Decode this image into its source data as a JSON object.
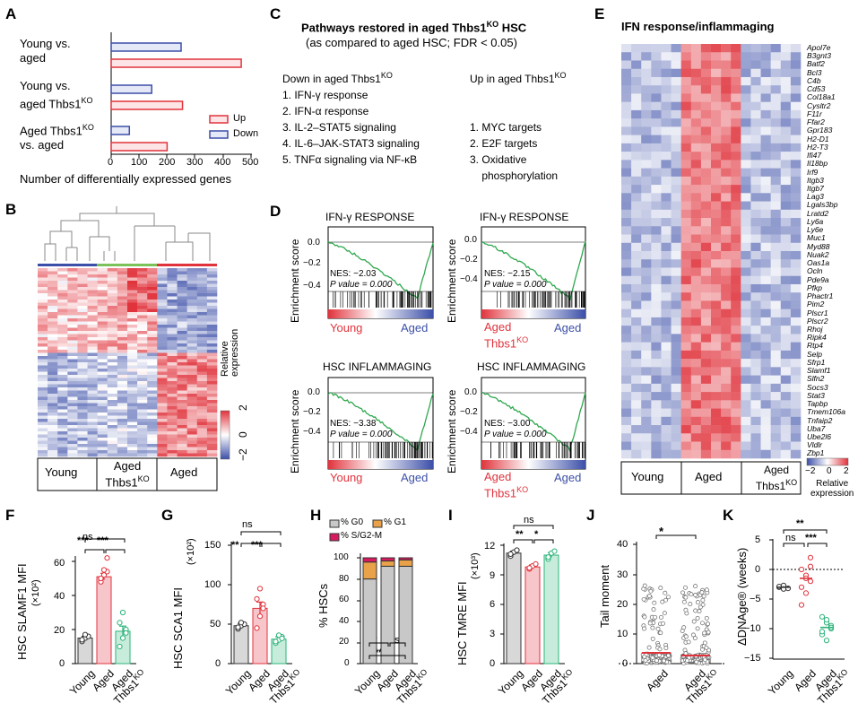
{
  "panel_labels": [
    "A",
    "B",
    "C",
    "D",
    "E",
    "F",
    "G",
    "H",
    "I",
    "J",
    "K"
  ],
  "colors": {
    "red": "#e0333c",
    "blue": "#3c4fa8",
    "green": "#2bb37a",
    "pink": "#f0a0a8",
    "gray": "#bdbdbd",
    "orange": "#e9a24a",
    "magenta": "#d81b60"
  },
  "panelA": {
    "categories": [
      "Young vs. aged",
      "Young vs. aged Thbs1KO",
      "Aged Thbs1KO vs. aged"
    ],
    "cat_lines": [
      [
        "Young vs.",
        "aged"
      ],
      [
        "Young vs.",
        "aged Thbs1",
        "KO"
      ],
      [
        "Aged Thbs1",
        "KO",
        " vs. aged"
      ]
    ],
    "legend": [
      "Up",
      "Down"
    ],
    "xlabel": "Number of differentially expressed genes",
    "ticks": [
      "0",
      "100",
      "200",
      "300",
      "400",
      "500"
    ]
  },
  "panelB": {
    "groups": [
      "Young",
      "Aged Thbs1KO",
      "Aged"
    ],
    "group_lines": [
      "Young",
      "Aged",
      "Thbs1",
      "KO",
      "Aged"
    ],
    "scale_label": "Relative expression",
    "scale_ticks": [
      "−2",
      "0",
      "2"
    ]
  },
  "panelC": {
    "title_a": "Pathways restored in aged Thbs1",
    "title_sup": "KO",
    "title_b": " HSC",
    "subtitle": "(as compared to aged HSC; FDR < 0.05)",
    "down_head": "Down in aged Thbs1",
    "down_sup": "KO",
    "down_items": [
      "1. IFN-γ response",
      "2. IFN-α response",
      "3. IL-2–STAT5 signaling",
      "4. IL-6–JAK-STAT3 signaling",
      "5. TNFα signaling via NF-κB"
    ],
    "up_head": "Up in aged Thbs1",
    "up_sup": "KO",
    "up_items": [
      "1. MYC targets",
      "2. E2F targets",
      "3. Oxidative",
      "    phosphorylation"
    ]
  },
  "panelD": {
    "ylabel": "Enrichment score",
    "plots": [
      {
        "title": "IFN-γ RESPONSE",
        "nes": "NES: −2.03",
        "pval": "P value = 0.000",
        "left": "Young",
        "left2": "",
        "right": "Aged"
      },
      {
        "title": "IFN-γ RESPONSE",
        "nes": "NES: −2.15",
        "pval": "P value = 0.000",
        "left": "Aged",
        "left2": "Thbs1KO",
        "right": "Aged"
      },
      {
        "title": "HSC INFLAMMAGING",
        "nes": "NES: −3.38",
        "pval": "P value = 0.000",
        "left": "Young",
        "left2": "",
        "right": "Aged"
      },
      {
        "title": "HSC INFLAMMAGING",
        "nes": "NES: −3.00",
        "pval": "P value = 0.000",
        "left": "Aged",
        "left2": "Thbs1KO",
        "right": "Aged"
      }
    ],
    "yticks": [
      "0.0",
      "−0.2",
      "−0.4"
    ]
  },
  "panelE": {
    "title": "IFN response/inflammaging",
    "genes": [
      "Apol7e",
      "B3gnt3",
      "Batf2",
      "Bcl3",
      "C4b",
      "Cd53",
      "Col18a1",
      "Cysltr2",
      "F11r",
      "Ffar2",
      "Gpr183",
      "H2-D1",
      "H2-T3",
      "Ifi47",
      "Il18bp",
      "Irf9",
      "Itgb3",
      "Itgb7",
      "Lag3",
      "Lgals3bp",
      "Lratd2",
      "Ly6a",
      "Ly6e",
      "Muc1",
      "Myd88",
      "Nuak2",
      "Oas1a",
      "Ocln",
      "Pde9a",
      "Pfkp",
      "Phactr1",
      "Pim2",
      "Plscr1",
      "Plscr2",
      "Rhoj",
      "Ripk4",
      "Rtp4",
      "Selp",
      "Sfrp1",
      "Slamf1",
      "Slfn2",
      "Socs3",
      "Stat3",
      "Tapbp",
      "Tmem106a",
      "Tnfaip2",
      "Uba7",
      "Ube2l6",
      "Vldlr",
      "Zbp1"
    ],
    "groups": [
      "Young",
      "Aged",
      "Aged Thbs1KO"
    ],
    "scale_ticks": [
      "−2",
      "0",
      "2"
    ],
    "scale_label": [
      "Relative",
      "expression"
    ]
  },
  "panelF": {
    "ylabel": "HSC SLAMF1 MFI",
    "yunit": "(×10²)",
    "yticks": [
      "0",
      "20",
      "40",
      "60"
    ],
    "sig": [
      "***",
      "***",
      "ns"
    ],
    "chart_data": {
      "type": "bar",
      "categories": [
        "Young",
        "Aged",
        "Aged Thbs1KO"
      ],
      "values": [
        15,
        51,
        19
      ],
      "ylim": [
        0,
        70
      ]
    }
  },
  "panelG": {
    "ylabel": "HSC SCA1 MFI",
    "yunit": "(×10²)",
    "yticks": [
      "0",
      "50",
      "100",
      "150"
    ],
    "sig": [
      "**",
      "***",
      "ns"
    ],
    "chart_data": {
      "type": "bar",
      "categories": [
        "Young",
        "Aged",
        "Aged Thbs1KO"
      ],
      "values": [
        48,
        70,
        31
      ],
      "ylim": [
        0,
        150
      ]
    }
  },
  "panelH": {
    "ylabel": "% HSCs",
    "yticks": [
      "0",
      "20",
      "40",
      "60",
      "80",
      "100"
    ],
    "legend": [
      "% G0",
      "% G1",
      "% S/G2-M"
    ],
    "sig": [
      "***",
      "ns",
      "***"
    ],
    "chart_data": {
      "type": "bar",
      "stacked": true,
      "categories": [
        "Young",
        "Aged",
        "Aged Thbs1KO"
      ],
      "series": [
        {
          "name": "% G0",
          "values": [
            80,
            92,
            92
          ]
        },
        {
          "name": "% G1",
          "values": [
            16,
            5,
            6
          ]
        },
        {
          "name": "% S/G2-M",
          "values": [
            4,
            3,
            2
          ]
        }
      ],
      "ylim": [
        0,
        100
      ]
    }
  },
  "panelI": {
    "ylabel": "HSC TMRE MFI",
    "yunit": "(×10³)",
    "yticks": [
      "0",
      "3",
      "6",
      "9",
      "12"
    ],
    "sig": [
      "**",
      "*",
      "ns"
    ],
    "chart_data": {
      "type": "bar",
      "categories": [
        "Young",
        "Aged",
        "Aged Thbs1KO"
      ],
      "values": [
        11.2,
        9.8,
        11.0
      ],
      "ylim": [
        0,
        12
      ]
    }
  },
  "panelJ": {
    "ylabel": "Tail moment",
    "yticks": [
      "0",
      "10",
      "20",
      "30",
      "40"
    ],
    "sig": [
      "*"
    ],
    "chart_data": {
      "type": "bar",
      "categories": [
        "Aged",
        "Aged Thbs1KO"
      ],
      "values": [
        3.5,
        2.5
      ],
      "ylim": [
        0,
        40
      ]
    }
  },
  "panelK": {
    "ylabel": "ΔDNAge® (weeks)",
    "yticks": [
      "5",
      "0",
      "−5",
      "−10",
      "−15"
    ],
    "sig": [
      "**",
      "ns",
      "***"
    ],
    "chart_data": {
      "type": "scatter",
      "categories": [
        "Young",
        "Aged",
        "Aged Thbs1KO"
      ],
      "values": [
        -3,
        -1.5,
        -9.8
      ],
      "ylim": [
        -15,
        5
      ]
    }
  },
  "xcats3": [
    "Young",
    "Aged",
    "Aged",
    "Thbs1KO"
  ],
  "xcats2": [
    "Aged",
    "Aged",
    "Thbs1KO"
  ]
}
